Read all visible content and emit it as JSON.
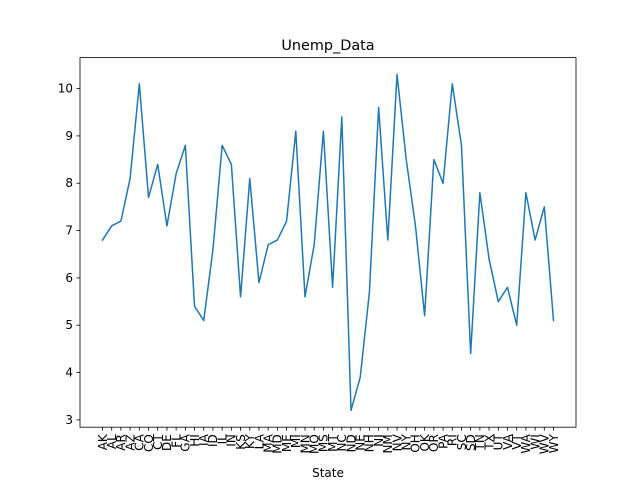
{
  "chart_data": {
    "type": "line",
    "title": "Unemp_Data",
    "xlabel": "State",
    "ylabel": "",
    "categories": [
      "AK",
      "AL",
      "AR",
      "AZ",
      "CA",
      "CO",
      "CT",
      "DE",
      "FL",
      "GA",
      "HI",
      "IA",
      "ID",
      "IL",
      "IN",
      "KS",
      "KY",
      "LA",
      "MA",
      "MD",
      "ME",
      "MI",
      "MN",
      "MO",
      "MS",
      "MT",
      "NC",
      "ND",
      "NE",
      "NH",
      "NJ",
      "NM",
      "NV",
      "NY",
      "OH",
      "OK",
      "OR",
      "PA",
      "RI",
      "SC",
      "SD",
      "TN",
      "TX",
      "UT",
      "VA",
      "VT",
      "WA",
      "WI",
      "WV",
      "WY"
    ],
    "series": [
      {
        "name": "Unemp_Data",
        "color": "#1f77b4",
        "values": [
          6.8,
          7.1,
          7.2,
          8.1,
          10.1,
          7.7,
          8.4,
          7.1,
          8.2,
          8.8,
          5.4,
          5.1,
          6.6,
          8.8,
          8.4,
          5.6,
          8.1,
          5.9,
          6.7,
          6.8,
          7.2,
          9.1,
          5.6,
          6.7,
          9.1,
          5.8,
          9.4,
          3.2,
          3.9,
          5.7,
          9.6,
          6.8,
          10.3,
          8.5,
          7.1,
          5.2,
          8.5,
          8.0,
          10.1,
          8.8,
          4.4,
          7.8,
          6.4,
          5.5,
          5.8,
          5.0,
          7.8,
          6.8,
          7.5,
          5.1
        ]
      }
    ],
    "yticks": [
      3,
      4,
      5,
      6,
      7,
      8,
      9,
      10
    ],
    "ylim": [
      2.845,
      10.655
    ],
    "grid": false,
    "legend": "none"
  }
}
